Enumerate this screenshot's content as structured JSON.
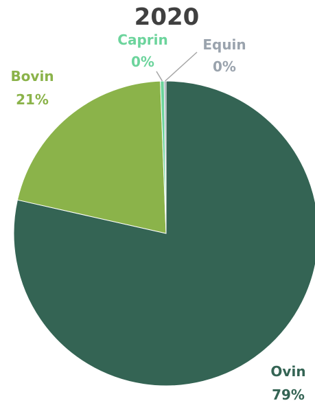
{
  "chart_data": {
    "type": "pie",
    "title": "2020",
    "slices": [
      {
        "label": "Ovin",
        "value": 79,
        "display": "79%",
        "color": "#346454"
      },
      {
        "label": "Bovin",
        "value": 21,
        "display": "21%",
        "color": "#8bb34a"
      },
      {
        "label": "Caprin",
        "value": 0.4,
        "display": "0%",
        "color": "#6cd49c"
      },
      {
        "label": "Equin",
        "value": 0.2,
        "display": "0%",
        "color": "#9aa3ad"
      }
    ],
    "start_angle": "12 o'clock",
    "direction": "clockwise",
    "legend": "none"
  }
}
